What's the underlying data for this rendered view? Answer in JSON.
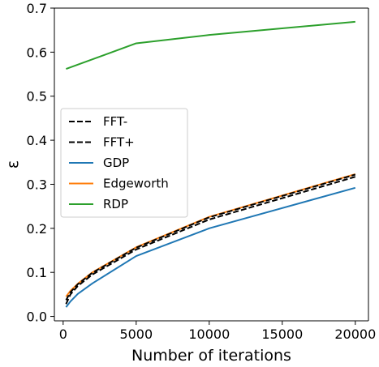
{
  "chart_data": {
    "type": "line",
    "xlabel": "Number of iterations",
    "ylabel": "ε",
    "xlim": [
      -600,
      20900
    ],
    "ylim": [
      -0.01,
      0.7
    ],
    "xticks": [
      0,
      5000,
      10000,
      15000,
      20000
    ],
    "yticks": [
      0.0,
      0.1,
      0.2,
      0.3,
      0.4,
      0.5,
      0.6,
      0.7
    ],
    "xtick_labels": [
      "0",
      "5000",
      "10000",
      "15000",
      "20000"
    ],
    "ytick_labels": [
      "0.0",
      "0.1",
      "0.2",
      "0.3",
      "0.4",
      "0.5",
      "0.6",
      "0.7"
    ],
    "grid": false,
    "legend_position": "center-left",
    "x": [
      200,
      500,
      1000,
      2000,
      5000,
      10000,
      20000
    ],
    "series": [
      {
        "name": "GDP",
        "color": "#1f77b4",
        "dash": "solid",
        "values": [
          0.021,
          0.034,
          0.051,
          0.075,
          0.137,
          0.2,
          0.292
        ]
      },
      {
        "name": "Edgeworth",
        "color": "#ff7f0e",
        "dash": "solid",
        "values": [
          0.045,
          0.058,
          0.074,
          0.1,
          0.157,
          0.226,
          0.323
        ]
      },
      {
        "name": "RDP",
        "color": "#2ca02c",
        "dash": "solid",
        "values": [
          0.562,
          null,
          null,
          null,
          0.62,
          0.639,
          0.669
        ]
      },
      {
        "name": "FFT-",
        "color": "#000000",
        "dash": "dashed",
        "values": [
          0.028,
          0.05,
          0.069,
          0.095,
          0.152,
          0.22,
          0.317
        ]
      },
      {
        "name": "FFT+",
        "color": "#000000",
        "dash": "dashed",
        "values": [
          0.037,
          0.055,
          0.073,
          0.099,
          0.156,
          0.225,
          0.322
        ]
      }
    ],
    "legend_order": [
      "FFT-",
      "FFT+",
      "GDP",
      "Edgeworth",
      "RDP"
    ]
  }
}
